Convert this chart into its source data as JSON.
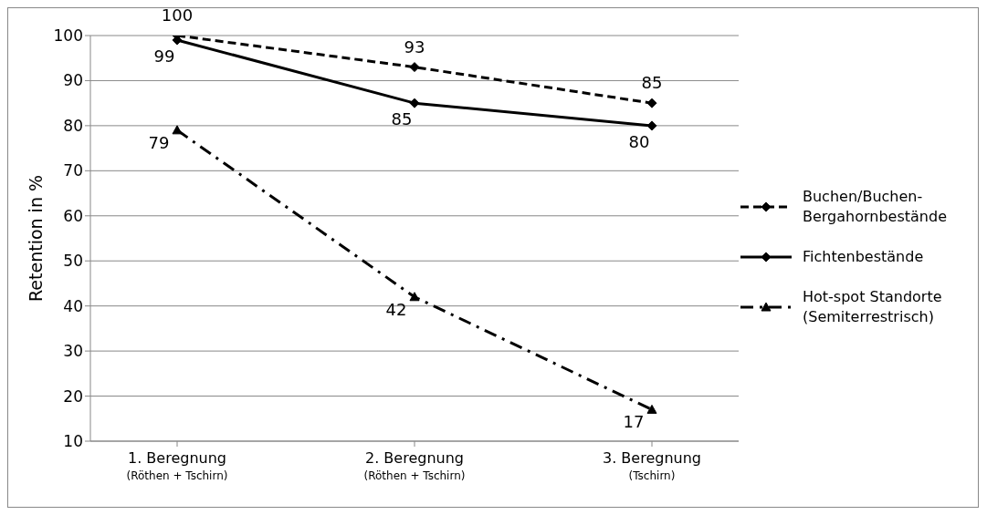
{
  "chart_data": {
    "type": "line",
    "ylabel": "Retention in %",
    "categories": [
      "1. Beregnung\n(Röthen + Tschirn)",
      "2. Beregnung\n(Röthen + Tschirn)",
      "3. Beregnung\n(Tschirn)"
    ],
    "series": [
      {
        "name": "Buchen/Buchen-Bergahornbestände",
        "color": "#000000",
        "values": [
          100,
          93,
          85
        ],
        "line_style": "dashed",
        "marker": "diamond"
      },
      {
        "name": "Fichtenbestände",
        "color": "#000000",
        "values": [
          99,
          85,
          80
        ],
        "line_style": "solid",
        "marker": "diamond"
      },
      {
        "name": "Hot-spot Standorte (Semiterrestrisch)",
        "color": "#000000",
        "values": [
          79,
          42,
          17
        ],
        "line_style": "dashdot",
        "marker": "triangle"
      }
    ],
    "ylim": [
      10,
      100
    ],
    "yticks": [
      10,
      20,
      30,
      40,
      50,
      60,
      70,
      80,
      90,
      100
    ],
    "grid": "y",
    "legend": "right",
    "data_labels": true
  }
}
